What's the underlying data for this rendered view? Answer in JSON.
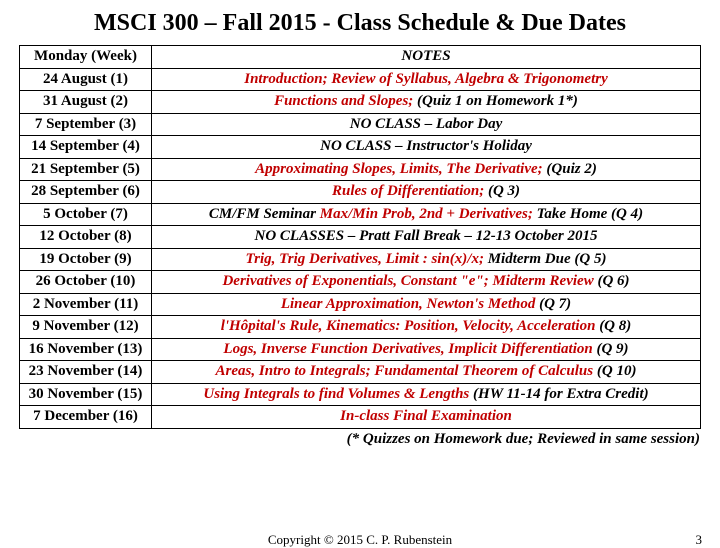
{
  "title": "MSCI 300 – Fall 2015 - Class Schedule & Due Dates",
  "colors": {
    "highlight": "#c00000",
    "black": "#000000"
  },
  "header": {
    "date": "Monday (Week)",
    "notes": "NOTES"
  },
  "rows": [
    {
      "date": "24 August (1)",
      "parts": [
        {
          "t": "Introduction; Review of Syllabus, Algebra & Trigonometry",
          "c": "highlight"
        }
      ]
    },
    {
      "date": "31 August (2)",
      "parts": [
        {
          "t": "Functions and Slopes;  ",
          "c": "highlight"
        },
        {
          "t": "(Quiz 1 on Homework 1*)",
          "c": "black"
        }
      ]
    },
    {
      "date": "7 September (3)",
      "parts": [
        {
          "t": "NO CLASS – Labor Day",
          "c": "black"
        }
      ]
    },
    {
      "date": "14 September (4)",
      "parts": [
        {
          "t": "NO CLASS – Instructor's Holiday",
          "c": "black"
        }
      ]
    },
    {
      "date": "21 September (5)",
      "parts": [
        {
          "t": "Approximating Slopes, Limits, The Derivative;  ",
          "c": "highlight"
        },
        {
          "t": "(Quiz 2)",
          "c": "black"
        }
      ]
    },
    {
      "date": "28 September (6)",
      "parts": [
        {
          "t": "Rules of Differentiation;  ",
          "c": "highlight"
        },
        {
          "t": "(Q 3)",
          "c": "black"
        }
      ]
    },
    {
      "date": "5 October (7)",
      "parts": [
        {
          "t": "CM/FM Seminar ",
          "c": "black"
        },
        {
          "t": "Max/Min Prob, 2nd + Derivatives; ",
          "c": "highlight"
        },
        {
          "t": "Take Home (Q 4)",
          "c": "black"
        }
      ]
    },
    {
      "date": "12 October (8)",
      "parts": [
        {
          "t": "NO CLASSES – Pratt Fall Break – 12-13 October 2015",
          "c": "black"
        }
      ]
    },
    {
      "date": "19 October (9)",
      "parts": [
        {
          "t": "Trig, Trig Derivatives, Limit : sin(x)/x;  ",
          "c": "highlight"
        },
        {
          "t": "Midterm Due (Q 5)",
          "c": "black"
        }
      ]
    },
    {
      "date": "26 October (10)",
      "parts": [
        {
          "t": "Derivatives of Exponentials, Constant \"e\"; Midterm Review ",
          "c": "highlight"
        },
        {
          "t": "(Q 6)",
          "c": "black"
        }
      ]
    },
    {
      "date": "2 November (11)",
      "parts": [
        {
          "t": "Linear Approximation, Newton's Method  ",
          "c": "highlight"
        },
        {
          "t": "(Q 7)",
          "c": "black"
        }
      ]
    },
    {
      "date": "9 November (12)",
      "parts": [
        {
          "t": "l'Hôpital's Rule, Kinematics: Position, Velocity, Acceleration  ",
          "c": "highlight"
        },
        {
          "t": "(Q 8)",
          "c": "black"
        }
      ]
    },
    {
      "date": "16 November (13)",
      "parts": [
        {
          "t": "Logs, Inverse Function Derivatives, Implicit Differentiation  ",
          "c": "highlight"
        },
        {
          "t": "(Q 9)",
          "c": "black"
        }
      ]
    },
    {
      "date": "23 November (14)",
      "parts": [
        {
          "t": "Areas, Intro to Integrals; Fundamental Theorem of Calculus  ",
          "c": "highlight"
        },
        {
          "t": "(Q 10)",
          "c": "black"
        }
      ]
    },
    {
      "date": "30 November (15)",
      "parts": [
        {
          "t": "Using Integrals to find Volumes & Lengths  ",
          "c": "highlight"
        },
        {
          "t": "(HW 11-14 for Extra Credit)",
          "c": "black"
        }
      ]
    },
    {
      "date": "7 December (16)",
      "parts": [
        {
          "t": "In-class Final Examination",
          "c": "highlight"
        }
      ]
    }
  ],
  "footnote": "(* Quizzes on Homework due; Reviewed in same session)",
  "footer": {
    "copyright": "Copyright © 2015 C. P. Rubenstein",
    "page": "3"
  }
}
